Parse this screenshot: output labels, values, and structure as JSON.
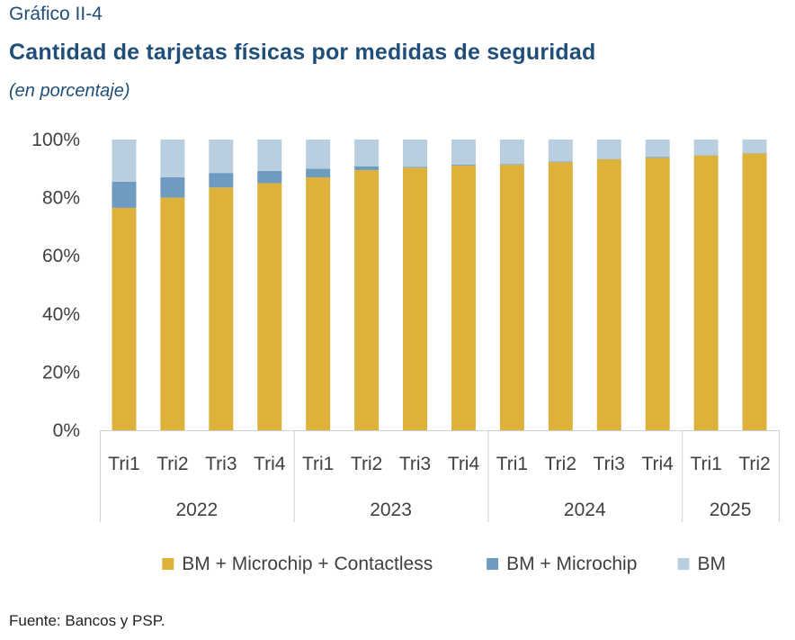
{
  "header": {
    "kicker": "Gráfico II-4",
    "title": "Cantidad de tarjetas físicas por medidas de seguridad",
    "subtitle": "(en porcentaje)"
  },
  "footer": {
    "source": "Fuente: Bancos y PSP."
  },
  "chart_data": {
    "type": "bar",
    "stacked": true,
    "title": "Cantidad de tarjetas físicas por medidas de seguridad",
    "subtitle": "(en porcentaje)",
    "categories": [
      "Tri1",
      "Tri2",
      "Tri3",
      "Tri4",
      "Tri1",
      "Tri2",
      "Tri3",
      "Tri4",
      "Tri1",
      "Tri2",
      "Tri3",
      "Tri4",
      "Tri1",
      "Tri2"
    ],
    "groups": [
      {
        "label": "2022",
        "count": 4
      },
      {
        "label": "2023",
        "count": 4
      },
      {
        "label": "2024",
        "count": 4
      },
      {
        "label": "2025",
        "count": 2
      }
    ],
    "series": [
      {
        "name": "BM + Microchip + Contactless",
        "color": "#ddb13a",
        "values": [
          76.5,
          80,
          83.5,
          85,
          87,
          89.5,
          90.3,
          91,
          91.3,
          92.2,
          93.2,
          93.7,
          94.5,
          95.2
        ]
      },
      {
        "name": "BM + Microchip",
        "color": "#6f9bc0",
        "values": [
          9,
          7,
          5,
          4.2,
          3,
          1.3,
          0.3,
          0.3,
          0.2,
          0.2,
          0.1,
          0.3,
          0.1,
          0.1
        ]
      },
      {
        "name": "BM",
        "color": "#b9cfe0",
        "values": [
          14.5,
          13,
          11.5,
          10.8,
          10,
          9.2,
          9.4,
          8.7,
          8.5,
          7.6,
          6.7,
          6,
          5.4,
          4.7
        ]
      }
    ],
    "yticks": [
      "0%",
      "20%",
      "40%",
      "60%",
      "80%",
      "100%"
    ],
    "ylim": [
      0,
      100
    ],
    "legend_position": "bottom",
    "grid": false
  }
}
